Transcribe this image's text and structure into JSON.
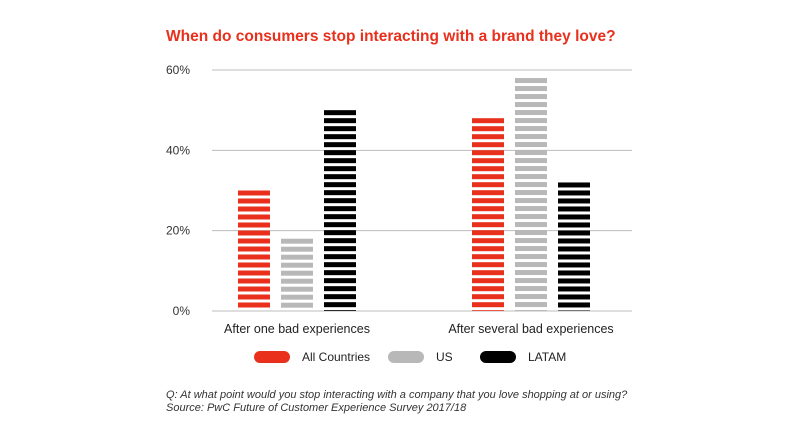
{
  "chart_data": {
    "type": "bar",
    "title": "When do consumers stop interacting with a brand they love?",
    "categories": [
      "After one bad experiences",
      "After several bad experiences"
    ],
    "series": [
      {
        "name": "All Countries",
        "color": "#e8301c",
        "values": [
          30,
          48
        ]
      },
      {
        "name": "US",
        "color": "#b8b8b8",
        "values": [
          18,
          58
        ]
      },
      {
        "name": "LATAM",
        "color": "#000000",
        "values": [
          50,
          32
        ]
      }
    ],
    "ylim": [
      0,
      60
    ],
    "yticks": [
      "0%",
      "20%",
      "40%",
      "60%"
    ],
    "ytick_values": [
      0,
      20,
      40,
      60
    ],
    "grid": true,
    "legend": "bottom"
  },
  "footnote": {
    "question": "Q: At what point would you stop interacting with a company that you love shopping at or using?",
    "source": "Source: PwC Future of Customer Experience Survey 2017/18"
  }
}
